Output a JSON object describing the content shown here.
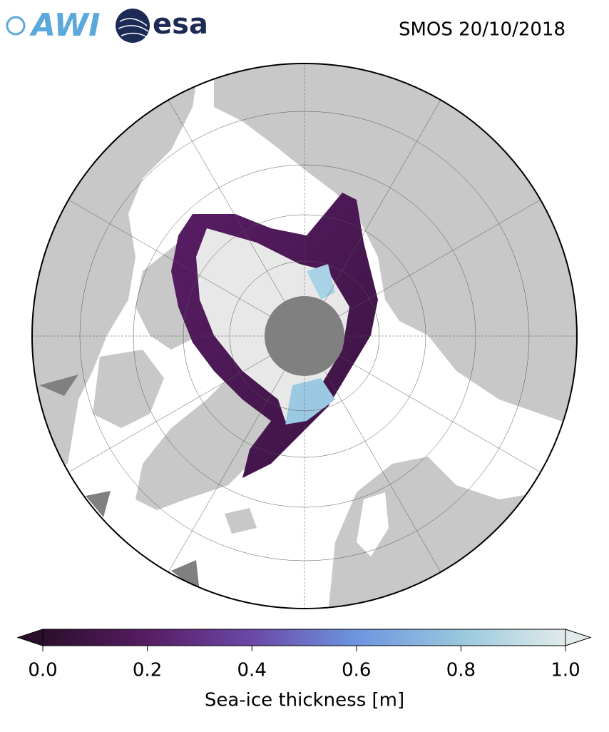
{
  "header": {
    "title": "SMOS 20/10/2018",
    "logos": [
      "AWI",
      "esa"
    ]
  },
  "colorbar": {
    "label": "Sea-ice thickness [m]",
    "range": [
      0,
      1
    ],
    "ticks": [
      {
        "value": 0,
        "label": "0.0"
      },
      {
        "value": 0.2,
        "label": "0.2"
      },
      {
        "value": 0.4,
        "label": "0.4"
      },
      {
        "value": 0.6,
        "label": "0.6"
      },
      {
        "value": 0.8,
        "label": "0.8"
      },
      {
        "value": 1,
        "label": "1.0"
      }
    ]
  }
}
